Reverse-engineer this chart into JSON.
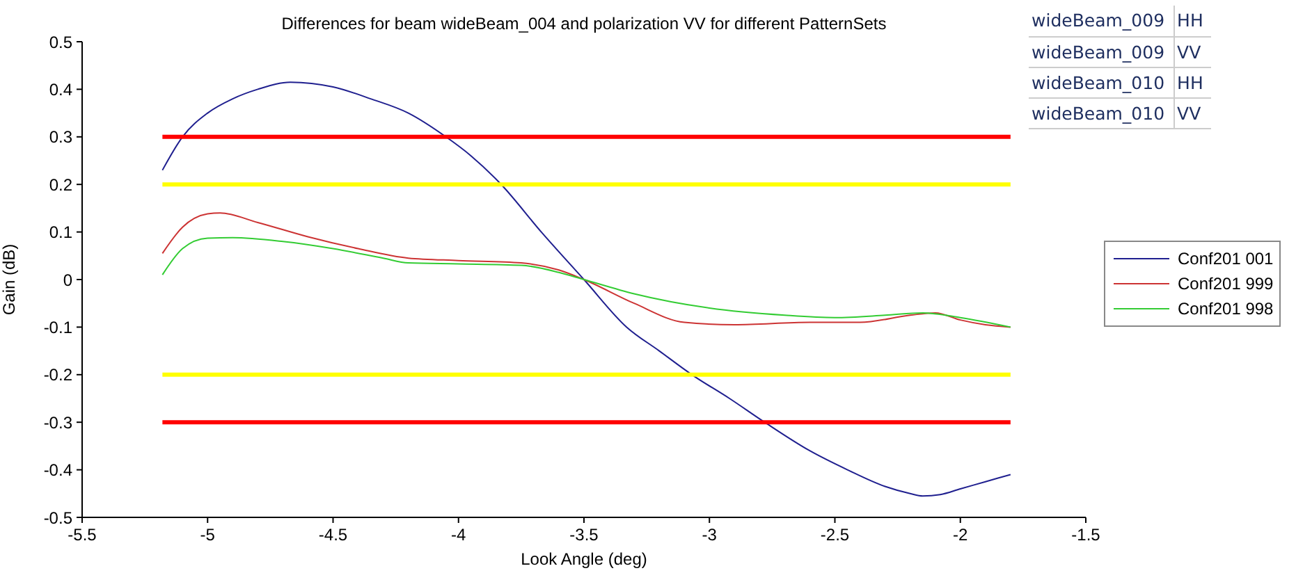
{
  "chart_data": {
    "type": "line",
    "title": "Differences for beam wideBeam_004 and polarization VV for different PatternSets",
    "xlabel": "Look Angle (deg)",
    "ylabel": "Gain (dB)",
    "xlim": [
      -5.5,
      -1.5
    ],
    "xticks": [
      -5.5,
      -5,
      -4.5,
      -4,
      -3.5,
      -3,
      -2.5,
      -2,
      -1.5
    ],
    "ylim": [
      -0.5,
      0.5
    ],
    "yticks": [
      -0.5,
      -0.4,
      -0.3,
      -0.2,
      -0.1,
      0,
      0.1,
      0.2,
      0.3,
      0.4,
      0.5
    ],
    "grid": false,
    "legend": "right",
    "marker": "none",
    "line_style": "solid",
    "annotations": [
      "wideBeam_009",
      "HH",
      "wideBeam_009",
      "VV",
      "wideBeam_010",
      "HH",
      "wideBeam_010",
      "VV"
    ],
    "series": [
      {
        "name": "Conf201 001",
        "color": "#1f1f8f",
        "x": [
          -5.18,
          -5.1,
          -5.0,
          -4.9,
          -4.8,
          -4.67,
          -4.5,
          -4.35,
          -4.2,
          -4.05,
          -3.95,
          -3.83,
          -3.67,
          -3.5,
          -3.33,
          -3.2,
          -3.07,
          -2.92,
          -2.78,
          -2.6,
          -2.45,
          -2.3,
          -2.2,
          -2.15,
          -2.08,
          -2.0,
          -1.9,
          -1.8
        ],
        "values": [
          0.23,
          0.3,
          0.35,
          0.38,
          0.4,
          0.415,
          0.405,
          0.38,
          0.35,
          0.3,
          0.26,
          0.2,
          0.1,
          0,
          -0.1,
          -0.15,
          -0.2,
          -0.25,
          -0.3,
          -0.36,
          -0.4,
          -0.435,
          -0.45,
          -0.455,
          -0.452,
          -0.44,
          -0.425,
          -0.41
        ]
      },
      {
        "name": "Conf201 999",
        "color": "#cc3333",
        "x": [
          -5.18,
          -5.1,
          -5.0,
          -4.95,
          -4.8,
          -4.6,
          -4.4,
          -4.2,
          -4.0,
          -3.75,
          -3.6,
          -3.5,
          -3.3,
          -3.1,
          -2.9,
          -2.6,
          -2.4,
          -2.2,
          -2.1,
          -2.0,
          -1.9,
          -1.8
        ],
        "values": [
          0.055,
          0.11,
          0.138,
          0.14,
          0.12,
          0.09,
          0.065,
          0.045,
          0.04,
          0.035,
          0.02,
          0,
          -0.05,
          -0.09,
          -0.095,
          -0.09,
          -0.09,
          -0.075,
          -0.07,
          -0.085,
          -0.095,
          -0.1
        ]
      },
      {
        "name": "Conf201 998",
        "color": "#33cc33",
        "x": [
          -5.18,
          -5.1,
          -5.0,
          -4.9,
          -4.7,
          -4.5,
          -4.3,
          -4.2,
          -4.0,
          -3.75,
          -3.6,
          -3.5,
          -3.3,
          -3.0,
          -2.7,
          -2.5,
          -2.3,
          -2.15,
          -2.0,
          -1.8
        ],
        "values": [
          0.01,
          0.065,
          0.087,
          0.088,
          0.08,
          0.065,
          0.045,
          0.035,
          0.033,
          0.03,
          0.015,
          0,
          -0.03,
          -0.06,
          -0.075,
          -0.08,
          -0.075,
          -0.07,
          -0.08,
          -0.1
        ]
      },
      {
        "color": "#ff0000",
        "x": [
          -5.18,
          -1.8
        ],
        "values": [
          0.3,
          0.3
        ]
      },
      {
        "color": "#ffff00",
        "x": [
          -5.18,
          -1.8
        ],
        "values": [
          0.2,
          0.2
        ]
      },
      {
        "color": "#ffff00",
        "x": [
          -5.18,
          -1.8
        ],
        "values": [
          -0.2,
          -0.2
        ]
      },
      {
        "color": "#ff0000",
        "x": [
          -5.18,
          -1.8
        ],
        "values": [
          -0.3,
          -0.3
        ]
      }
    ]
  }
}
